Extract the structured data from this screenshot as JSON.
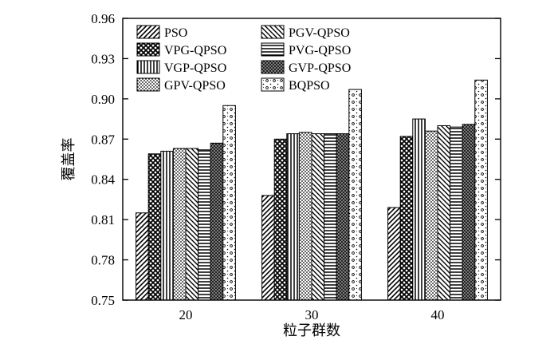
{
  "chart_data": {
    "type": "bar",
    "xlabel": "粒子群数",
    "ylabel": "覆盖率",
    "ylim": [
      0.75,
      0.96
    ],
    "yticks": [
      "0.75",
      "0.78",
      "0.81",
      "0.84",
      "0.87",
      "0.90",
      "0.93",
      "0.96"
    ],
    "categories": [
      "20",
      "30",
      "40"
    ],
    "grid": false,
    "legend_position": "top-left",
    "series": [
      {
        "name": "PSO",
        "pattern": "diag-right",
        "values": [
          0.815,
          0.828,
          0.819
        ]
      },
      {
        "name": "VPG-QPSO",
        "pattern": "crosshatch",
        "values": [
          0.859,
          0.87,
          0.872
        ]
      },
      {
        "name": "VGP-QPSO",
        "pattern": "vertical",
        "values": [
          0.861,
          0.874,
          0.885
        ]
      },
      {
        "name": "GPV-QPSO",
        "pattern": "dots",
        "values": [
          0.863,
          0.875,
          0.876
        ]
      },
      {
        "name": "PGV-QPSO",
        "pattern": "diag-left",
        "values": [
          0.863,
          0.874,
          0.88
        ]
      },
      {
        "name": "PVG-QPSO",
        "pattern": "horizontal",
        "values": [
          0.862,
          0.874,
          0.879
        ]
      },
      {
        "name": "GVP-QPSO",
        "pattern": "dense-dark",
        "values": [
          0.867,
          0.874,
          0.881
        ]
      },
      {
        "name": "BQPSO",
        "pattern": "sparse-dots",
        "values": [
          0.895,
          0.907,
          0.914
        ]
      }
    ]
  }
}
